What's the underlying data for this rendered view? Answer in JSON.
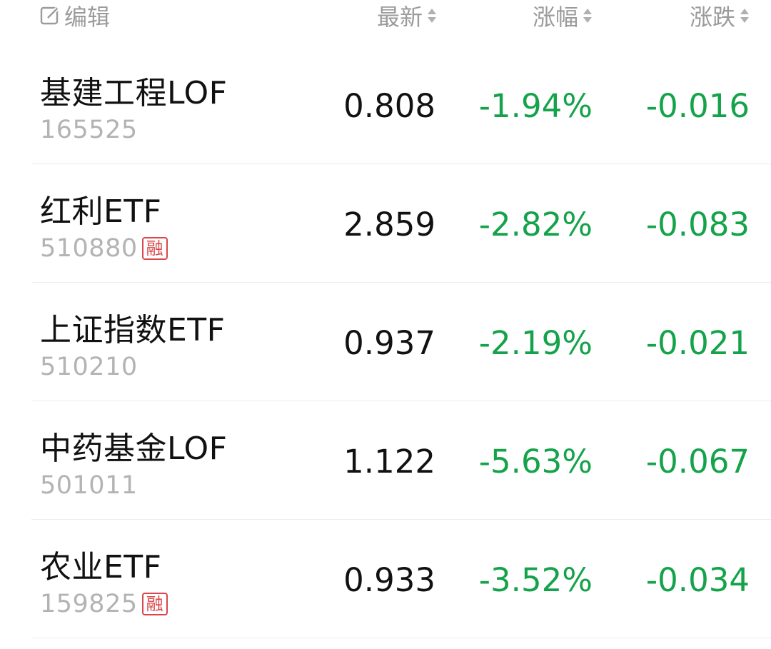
{
  "header": {
    "edit_label": "编辑",
    "col_latest": "最新",
    "col_pct": "涨幅",
    "col_chg": "涨跌"
  },
  "colors": {
    "down": "#14a34a",
    "badge": "#d9474b",
    "muted": "#9b9b9b"
  },
  "rows": [
    {
      "name": "基建工程LOF",
      "code": "165525",
      "badge": "",
      "latest": "0.808",
      "pct": "-1.94%",
      "chg": "-0.016"
    },
    {
      "name": "红利ETF",
      "code": "510880",
      "badge": "融",
      "latest": "2.859",
      "pct": "-2.82%",
      "chg": "-0.083"
    },
    {
      "name": "上证指数ETF",
      "code": "510210",
      "badge": "",
      "latest": "0.937",
      "pct": "-2.19%",
      "chg": "-0.021"
    },
    {
      "name": "中药基金LOF",
      "code": "501011",
      "badge": "",
      "latest": "1.122",
      "pct": "-5.63%",
      "chg": "-0.067"
    },
    {
      "name": "农业ETF",
      "code": "159825",
      "badge": "融",
      "latest": "0.933",
      "pct": "-3.52%",
      "chg": "-0.034"
    }
  ]
}
